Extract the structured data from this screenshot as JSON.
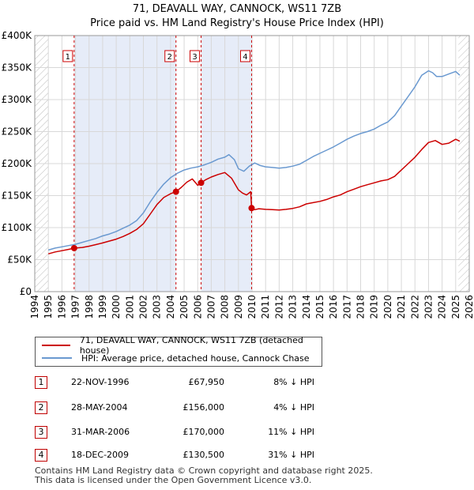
{
  "chart_data": {
    "type": "line",
    "title": "71, DEAVALL WAY, CANNOCK, WS11 7ZB",
    "subtitle": "Price paid vs. HM Land Registry's House Price Index (HPI)",
    "xlabel": "",
    "ylabel": "",
    "xlim": [
      1994,
      2026
    ],
    "ylim": [
      0,
      400000
    ],
    "x_ticks": [
      1994,
      1995,
      1996,
      1997,
      1998,
      1999,
      2000,
      2001,
      2002,
      2003,
      2004,
      2005,
      2006,
      2007,
      2008,
      2009,
      2010,
      2011,
      2012,
      2013,
      2014,
      2015,
      2016,
      2017,
      2018,
      2019,
      2020,
      2021,
      2022,
      2023,
      2024,
      2025,
      2026
    ],
    "y_ticks": [
      {
        "value": 0,
        "label": "£0"
      },
      {
        "value": 50000,
        "label": "£50K"
      },
      {
        "value": 100000,
        "label": "£100K"
      },
      {
        "value": 150000,
        "label": "£150K"
      },
      {
        "value": 200000,
        "label": "£200K"
      },
      {
        "value": 250000,
        "label": "£250K"
      },
      {
        "value": 300000,
        "label": "£300K"
      },
      {
        "value": 350000,
        "label": "£350K"
      },
      {
        "value": 400000,
        "label": "£400K"
      }
    ],
    "grid": true,
    "data_start": 1995.0,
    "future_from": 2025.2,
    "series": [
      {
        "name": "71, DEAVALL WAY, CANNOCK, WS11 7ZB (detached house)",
        "color": "#cc0000",
        "x": [
          1995.0,
          1995.5,
          1996.0,
          1996.5,
          1996.9,
          1997.5,
          1998.0,
          1998.5,
          1999.0,
          1999.5,
          2000.0,
          2000.5,
          2001.0,
          2001.5,
          2002.0,
          2002.5,
          2003.0,
          2003.5,
          2004.0,
          2004.4,
          2004.8,
          2005.2,
          2005.6,
          2006.0,
          2006.25,
          2006.6,
          2007.0,
          2007.5,
          2008.0,
          2008.5,
          2009.0,
          2009.3,
          2009.6,
          2009.9,
          2009.97,
          2010.2,
          2010.5,
          2011.0,
          2011.5,
          2012.0,
          2012.5,
          2013.0,
          2013.5,
          2014.0,
          2014.5,
          2015.0,
          2015.5,
          2016.0,
          2016.5,
          2017.0,
          2017.5,
          2018.0,
          2018.5,
          2019.0,
          2019.5,
          2020.0,
          2020.5,
          2021.0,
          2021.5,
          2022.0,
          2022.5,
          2023.0,
          2023.5,
          2024.0,
          2024.5,
          2025.0,
          2025.3
        ],
        "y": [
          59000,
          62000,
          64000,
          66000,
          67950,
          69000,
          71000,
          73500,
          76000,
          79000,
          82000,
          86000,
          91000,
          97000,
          106000,
          121000,
          136000,
          147000,
          153000,
          156000,
          163000,
          171000,
          176000,
          166000,
          170000,
          175000,
          179000,
          183000,
          186000,
          177000,
          159000,
          154000,
          151000,
          156000,
          130500,
          128000,
          129500,
          128500,
          128000,
          127500,
          128500,
          130000,
          132500,
          137000,
          139000,
          141000,
          144000,
          148000,
          151000,
          156000,
          160000,
          164000,
          167000,
          170000,
          173000,
          175000,
          180000,
          190000,
          200000,
          210000,
          222000,
          233000,
          236000,
          230000,
          232000,
          238000,
          235000
        ]
      },
      {
        "name": "HPI: Average price, detached house, Cannock Chase",
        "color": "#6a99d0",
        "x": [
          1995.0,
          1995.5,
          1996.0,
          1996.5,
          1997.0,
          1997.5,
          1998.0,
          1998.5,
          1999.0,
          1999.5,
          2000.0,
          2000.5,
          2001.0,
          2001.5,
          2002.0,
          2002.5,
          2003.0,
          2003.5,
          2004.0,
          2004.5,
          2005.0,
          2005.5,
          2006.0,
          2006.5,
          2007.0,
          2007.5,
          2008.0,
          2008.3,
          2008.7,
          2009.0,
          2009.4,
          2009.8,
          2010.2,
          2010.6,
          2011.0,
          2011.5,
          2012.0,
          2012.5,
          2013.0,
          2013.5,
          2014.0,
          2014.5,
          2015.0,
          2015.5,
          2016.0,
          2016.5,
          2017.0,
          2017.5,
          2018.0,
          2018.5,
          2019.0,
          2019.5,
          2020.0,
          2020.5,
          2021.0,
          2021.5,
          2022.0,
          2022.5,
          2023.0,
          2023.3,
          2023.6,
          2024.0,
          2024.5,
          2025.0,
          2025.3
        ],
        "y": [
          65000,
          68000,
          70000,
          72000,
          74000,
          77000,
          80000,
          83000,
          87000,
          90000,
          94000,
          99000,
          104000,
          111000,
          123000,
          140000,
          155000,
          168000,
          178000,
          185000,
          190000,
          193000,
          195000,
          198000,
          202000,
          207000,
          210000,
          214000,
          206000,
          192000,
          188000,
          196000,
          201000,
          197000,
          195000,
          194000,
          193000,
          194000,
          196000,
          199000,
          205000,
          211000,
          216000,
          221000,
          226000,
          232000,
          238000,
          243000,
          247000,
          250000,
          254000,
          260000,
          265000,
          275000,
          290000,
          305000,
          320000,
          338000,
          345000,
          342000,
          336000,
          336000,
          340000,
          344000,
          338000
        ]
      }
    ],
    "transactions": [
      {
        "n": "1",
        "x": 1996.9,
        "y": 67950
      },
      {
        "n": "2",
        "x": 2004.4,
        "y": 156000
      },
      {
        "n": "3",
        "x": 2006.25,
        "y": 170000
      },
      {
        "n": "4",
        "x": 2009.97,
        "y": 130500
      }
    ]
  },
  "title_line1": "71, DEAVALL WAY, CANNOCK, WS11 7ZB",
  "title_line2": "Price paid vs. HM Land Registry's House Price Index (HPI)",
  "legend": {
    "property": "71, DEAVALL WAY, CANNOCK, WS11 7ZB (detached house)",
    "hpi": "HPI: Average price, detached house, Cannock Chase",
    "property_color": "#cc0000",
    "hpi_color": "#6a99d0"
  },
  "table": [
    {
      "num": "1",
      "date": "22-NOV-1996",
      "price": "£67,950",
      "hpi": "8% ↓ HPI"
    },
    {
      "num": "2",
      "date": "28-MAY-2004",
      "price": "£156,000",
      "hpi": "4% ↓ HPI"
    },
    {
      "num": "3",
      "date": "31-MAR-2006",
      "price": "£170,000",
      "hpi": "11% ↓ HPI"
    },
    {
      "num": "4",
      "date": "18-DEC-2009",
      "price": "£130,500",
      "hpi": "31% ↓ HPI"
    }
  ],
  "footer_line1": "Contains HM Land Registry data © Crown copyright and database right 2025.",
  "footer_line2": "This data is licensed under the Open Government Licence v3.0."
}
